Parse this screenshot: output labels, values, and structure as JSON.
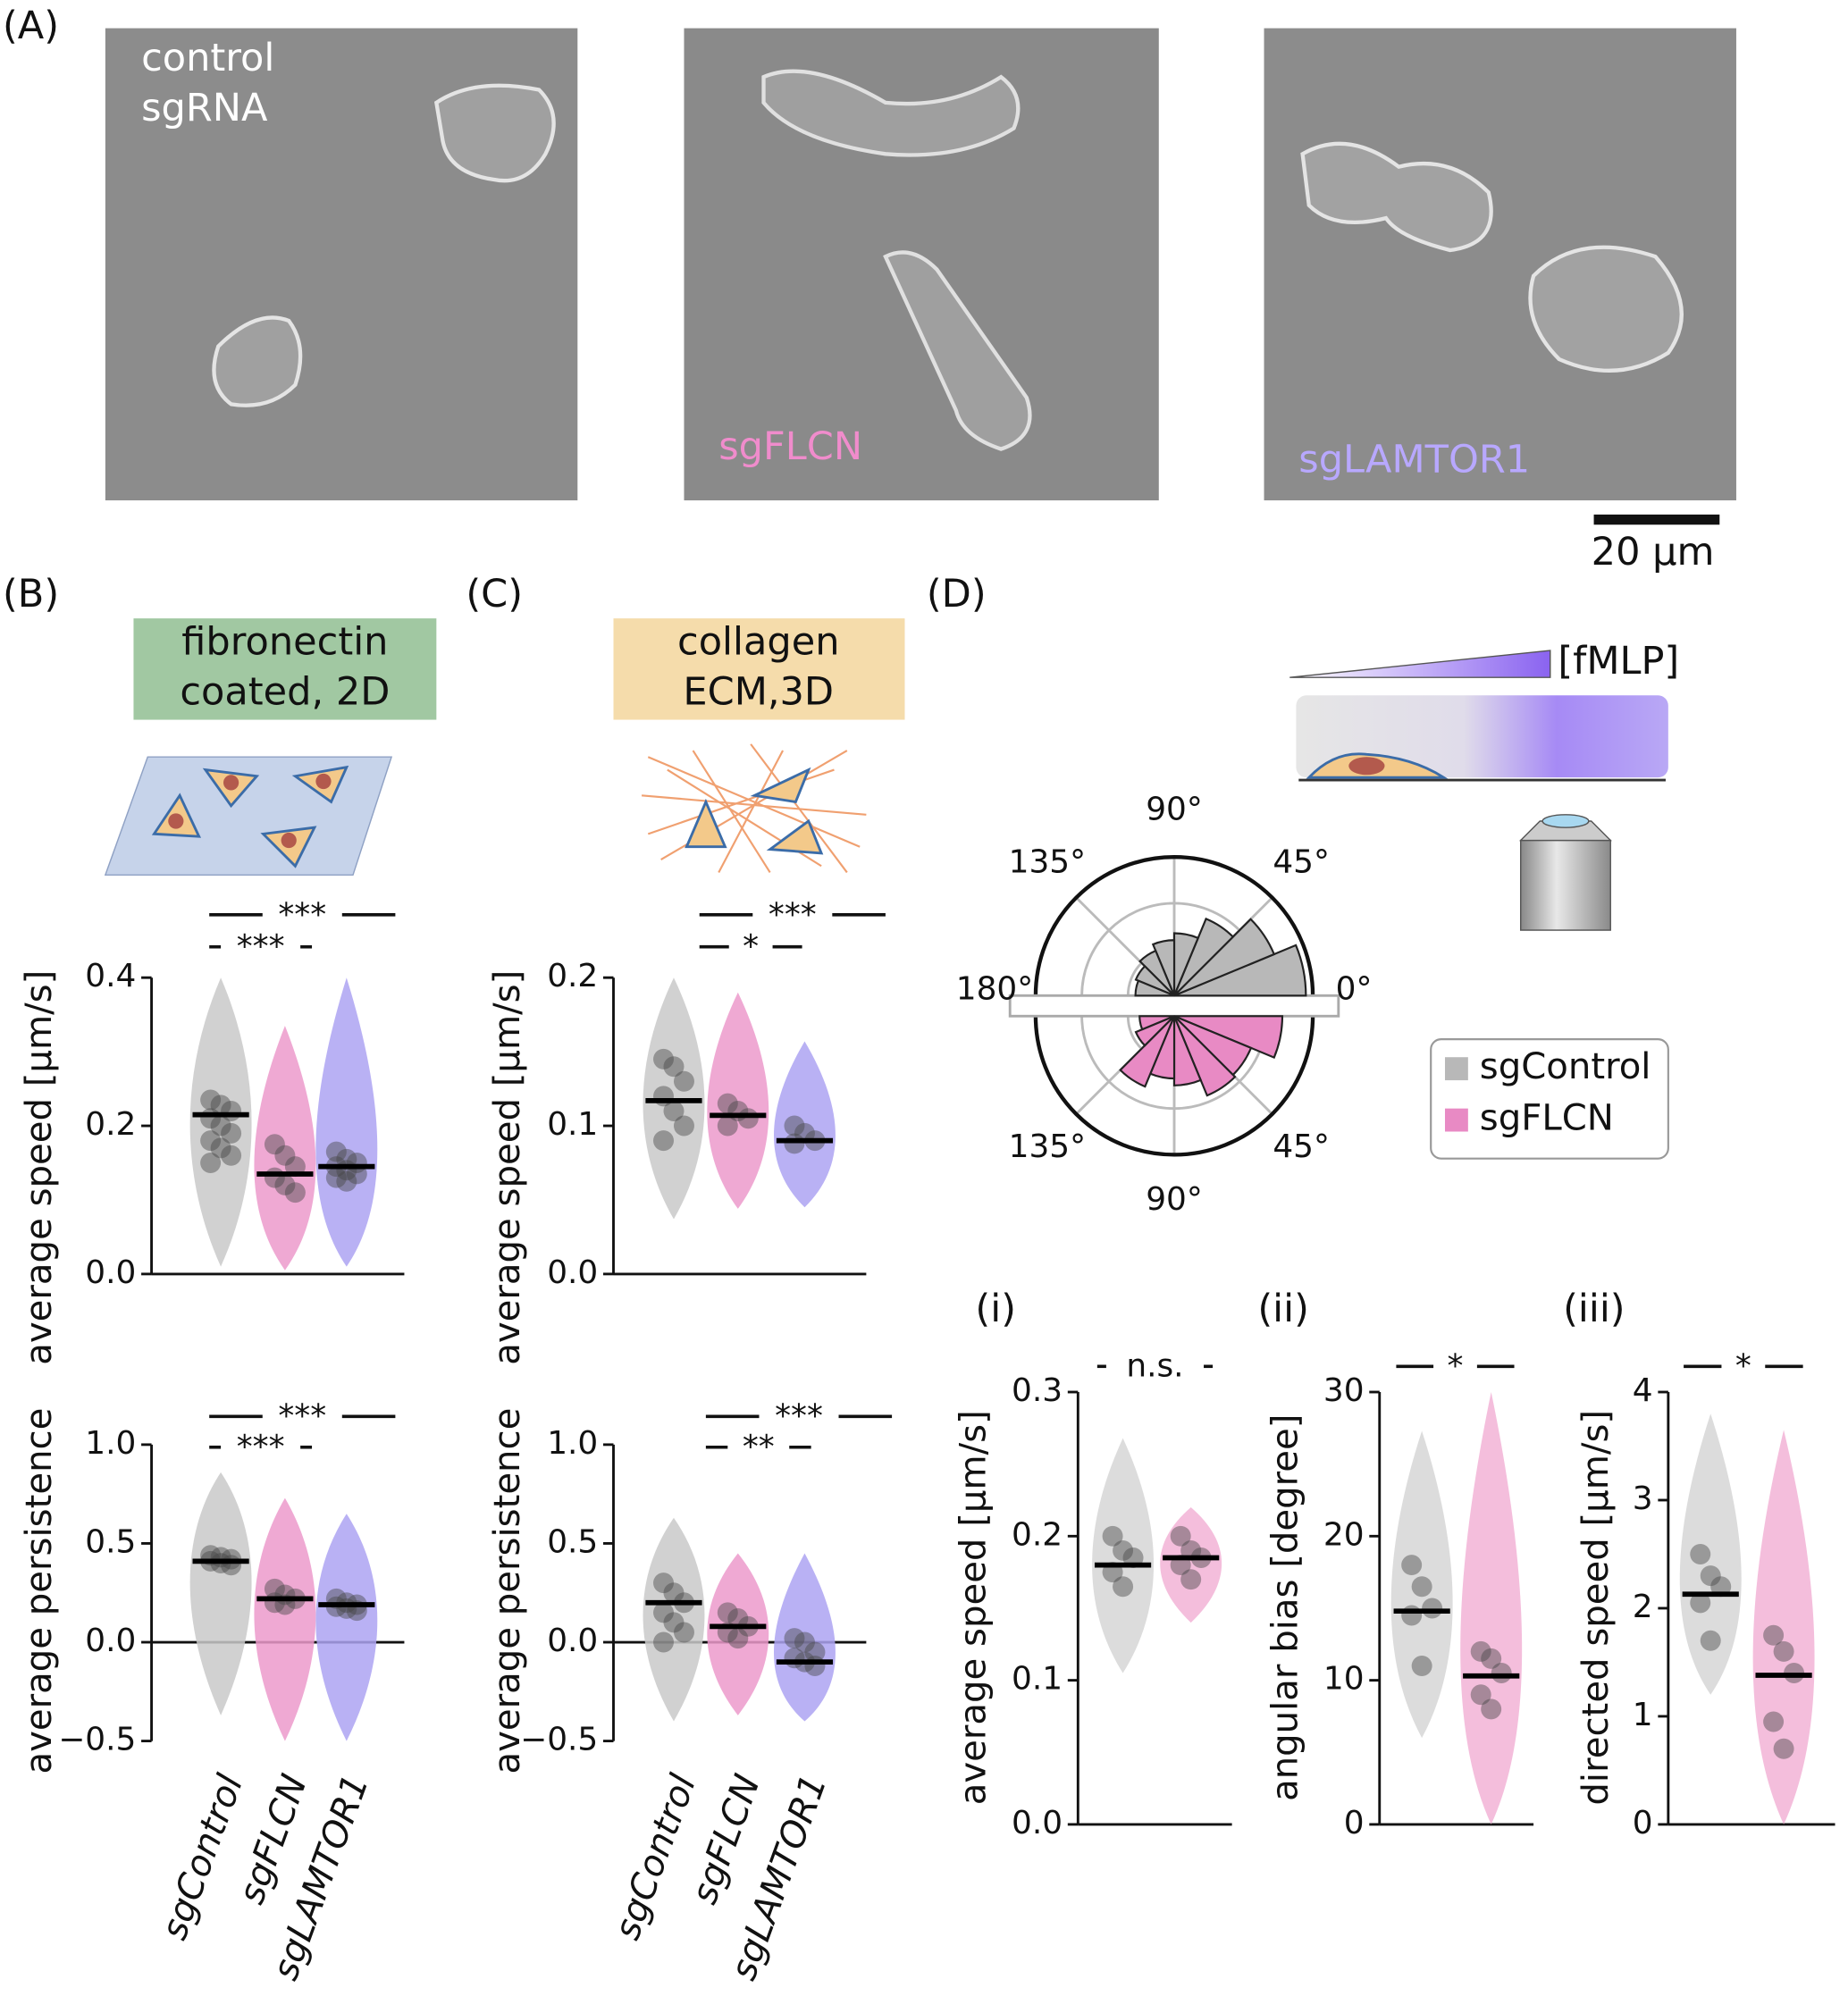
{
  "panel_labels": [
    "(A)",
    "(B)",
    "(C)",
    "(D)"
  ],
  "images": [
    {
      "label": [
        "control",
        "sgRNA"
      ]
    },
    {
      "label": [
        "sgFLCN"
      ]
    },
    {
      "label": [
        "sgLAMTOR1"
      ]
    }
  ],
  "scale_bar": "20 µm",
  "conditions": [
    [
      "fibronectin",
      "coated, 2D"
    ],
    [
      "collagen",
      "ECM,3D"
    ]
  ],
  "gradient_label": "[fMLP]",
  "chart_data": [
    {
      "type": "violin",
      "ylabel": "average speed [µm/s]",
      "ylim": [
        0,
        0.4
      ],
      "yticks": [
        {
          "value": 0,
          "label": "0.0"
        },
        0.2,
        0.4
      ],
      "significance": [
        "***",
        "***"
      ],
      "series": [
        {
          "color": "#c9c9c9",
          "range": [
            0.01,
            0.4
          ],
          "median": 0.215,
          "points": [
            0.235,
            0.228,
            0.22,
            0.21,
            0.2,
            0.19,
            0.18,
            0.17,
            0.16,
            0.15
          ]
        },
        {
          "color": "#ec9acb",
          "range": [
            0.005,
            0.335
          ],
          "median": 0.135,
          "points": [
            0.175,
            0.16,
            0.145,
            0.13,
            0.12,
            0.11
          ]
        },
        {
          "color": "#ada3f2",
          "range": [
            0.01,
            0.4
          ],
          "median": 0.145,
          "points": [
            0.165,
            0.155,
            0.15,
            0.145,
            0.14,
            0.135,
            0.13,
            0.125
          ]
        }
      ]
    },
    {
      "type": "violin",
      "ylabel": "average persistence",
      "ylim": [
        -0.5,
        1
      ],
      "yticks": [
        {
          "value": -0.5,
          "label": "−0.5"
        },
        {
          "value": 0,
          "label": "0.0"
        },
        0.5,
        {
          "value": 1,
          "label": "1.0"
        }
      ],
      "significance": [
        "***",
        "***"
      ],
      "categories": [
        "sgControl",
        "sgFLCN",
        "sgLAMTOR1"
      ],
      "series": [
        {
          "color": "#c9c9c9",
          "range": [
            -0.37,
            0.86
          ],
          "median": 0.41,
          "points": [
            0.44,
            0.43,
            0.42,
            0.41,
            0.4,
            0.39
          ]
        },
        {
          "color": "#ec9acb",
          "range": [
            -0.5,
            0.73
          ],
          "median": 0.22,
          "points": [
            0.27,
            0.24,
            0.22,
            0.2,
            0.19
          ]
        },
        {
          "color": "#ada3f2",
          "range": [
            -0.5,
            0.65
          ],
          "median": 0.19,
          "points": [
            0.22,
            0.2,
            0.19,
            0.18,
            0.17,
            0.16
          ]
        }
      ]
    },
    {
      "type": "violin",
      "ylabel": "average speed [µm/s]",
      "ylim": [
        0,
        0.2
      ],
      "yticks": [
        {
          "value": 0,
          "label": "0.0"
        },
        0.1,
        0.2
      ],
      "significance": [
        "***",
        "*"
      ],
      "series": [
        {
          "color": "#c9c9c9",
          "range": [
            0.037,
            0.2
          ],
          "median": 0.117,
          "points": [
            0.145,
            0.14,
            0.13,
            0.12,
            0.11,
            0.1,
            0.09
          ]
        },
        {
          "color": "#ec9acb",
          "range": [
            0.044,
            0.19
          ],
          "median": 0.107,
          "points": [
            0.115,
            0.11,
            0.105,
            0.1
          ]
        },
        {
          "color": "#ada3f2",
          "range": [
            0.045,
            0.157
          ],
          "median": 0.09,
          "points": [
            0.1,
            0.095,
            0.09,
            0.088
          ]
        }
      ]
    },
    {
      "type": "violin",
      "ylabel": "average persistence",
      "ylim": [
        -0.5,
        1
      ],
      "yticks": [
        {
          "value": -0.5,
          "label": "−0.5"
        },
        {
          "value": 0,
          "label": "0.0"
        },
        0.5,
        {
          "value": 1,
          "label": "1.0"
        }
      ],
      "significance": [
        "***",
        "**"
      ],
      "categories": [
        "sgControl",
        "sgFLCN",
        "sgLAMTOR1"
      ],
      "series": [
        {
          "color": "#c9c9c9",
          "range": [
            -0.4,
            0.63
          ],
          "median": 0.2,
          "points": [
            0.3,
            0.25,
            0.2,
            0.15,
            0.1,
            0.05,
            0.0
          ]
        },
        {
          "color": "#ec9acb",
          "range": [
            -0.37,
            0.45
          ],
          "median": 0.08,
          "points": [
            0.15,
            0.12,
            0.08,
            0.05,
            0.02
          ]
        },
        {
          "color": "#ada3f2",
          "range": [
            -0.4,
            0.45
          ],
          "median": -0.1,
          "points": [
            0.02,
            0.0,
            -0.05,
            -0.08,
            -0.1,
            -0.12
          ]
        }
      ]
    },
    {
      "type": "polar-bar",
      "rlim": [
        0,
        1
      ],
      "angle_bins": [
        0,
        22.5,
        45,
        67.5,
        90,
        112.5,
        135,
        157.5,
        180
      ],
      "angle_ticks": [
        {
          "value": 0,
          "label": "0°"
        },
        {
          "value": 45,
          "label": "45°"
        },
        {
          "value": 90,
          "label": "90°"
        },
        {
          "value": 135,
          "label": "135°"
        },
        {
          "value": 180,
          "label": "180°"
        }
      ],
      "lower_angle_ticks": [
        {
          "value": 45,
          "label": "45°"
        },
        {
          "value": 90,
          "label": "90°"
        },
        {
          "value": 135,
          "label": "135°"
        }
      ],
      "series": [
        {
          "name": "sgControl",
          "color": "#b8b8b8",
          "values": [
            0.95,
            0.78,
            0.6,
            0.45,
            0.4,
            0.35,
            0.3,
            0.28
          ]
        },
        {
          "name": "sgFLCN",
          "color": "#e88ac4",
          "values": [
            0.78,
            0.6,
            0.62,
            0.5,
            0.45,
            0.55,
            0.3,
            0.25
          ]
        }
      ]
    },
    {
      "type": "violin",
      "title": "(i)",
      "ylabel": "average speed [µm/s]",
      "ylim": [
        0,
        0.3
      ],
      "yticks": [
        {
          "value": 0,
          "label": "0.0"
        },
        0.1,
        0.2,
        0.3
      ],
      "significance": [
        "n.s."
      ],
      "series": [
        {
          "color": "#d6d6d6",
          "range": [
            0.105,
            0.268
          ],
          "median": 0.18,
          "points": [
            0.2,
            0.19,
            0.185,
            0.175,
            0.165
          ]
        },
        {
          "color": "#f2b3d6",
          "range": [
            0.14,
            0.22
          ],
          "median": 0.185,
          "points": [
            0.2,
            0.19,
            0.185,
            0.18,
            0.17
          ]
        }
      ]
    },
    {
      "type": "violin",
      "title": "(ii)",
      "ylabel": "angular bias [degree]",
      "ylim": [
        0,
        30
      ],
      "yticks": [
        0,
        10,
        20,
        30
      ],
      "significance": [
        "*"
      ],
      "series": [
        {
          "color": "#d6d6d6",
          "range": [
            6,
            27.3
          ],
          "median": 14.8,
          "points": [
            18,
            16.5,
            15,
            14.5,
            11
          ]
        },
        {
          "color": "#f2b3d6",
          "range": [
            0,
            30
          ],
          "median": 10.3,
          "points": [
            12,
            11.5,
            10.5,
            9,
            8
          ]
        }
      ]
    },
    {
      "type": "violin",
      "title": "(iii)",
      "ylabel": "directed speed [µm/s]",
      "ylim": [
        0,
        4
      ],
      "yticks": [
        0,
        1,
        2,
        3,
        4
      ],
      "significance": [
        "*"
      ],
      "series": [
        {
          "color": "#d6d6d6",
          "range": [
            1.2,
            3.8
          ],
          "median": 2.13,
          "points": [
            2.5,
            2.3,
            2.2,
            2.05,
            1.7
          ]
        },
        {
          "color": "#f2b3d6",
          "range": [
            0,
            3.65
          ],
          "median": 1.38,
          "points": [
            1.75,
            1.6,
            1.4,
            0.95,
            0.7
          ]
        }
      ]
    }
  ]
}
